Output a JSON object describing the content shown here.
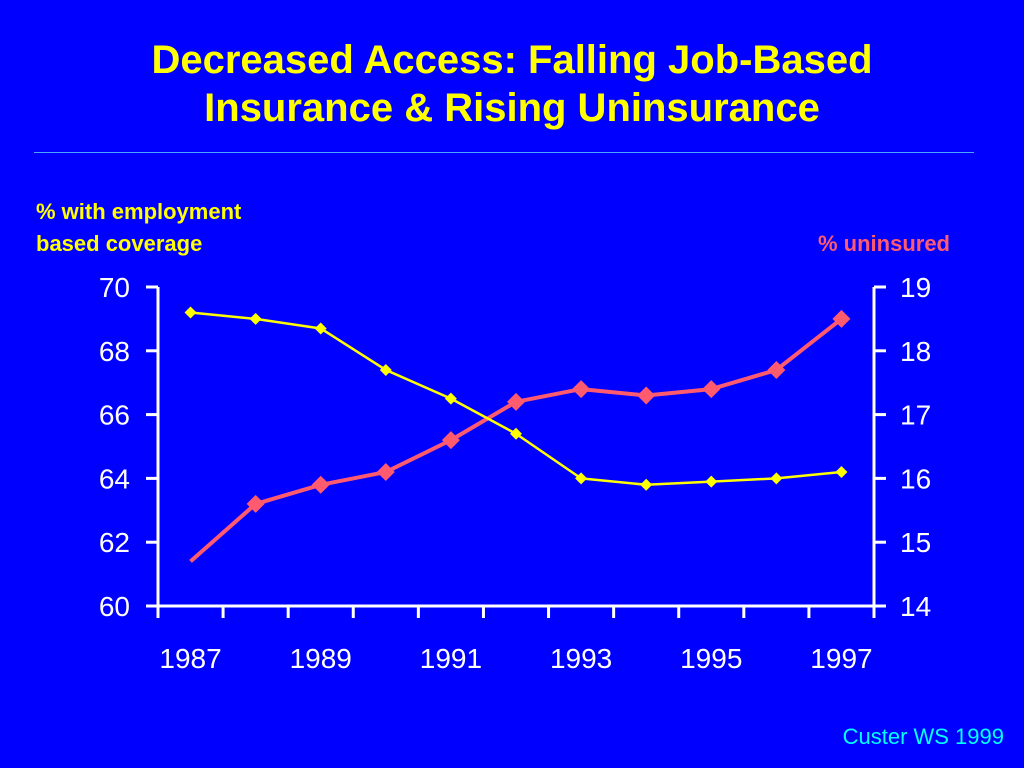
{
  "title_lines": [
    "Decreased Access: Falling Job-Based",
    "Insurance & Rising Uninsurance"
  ],
  "left_axis_label_lines": [
    "% with employment",
    "based coverage"
  ],
  "right_axis_label": "% uninsured",
  "source": "Custer WS 1999",
  "colors": {
    "background": "#0000ff",
    "title": "#ffff00",
    "employment_series": "#ffff00",
    "uninsured_series": "#ff5a6e",
    "axes": "#ffffff",
    "source": "#00ffff",
    "rule": "#4aa6ff"
  },
  "chart_data": {
    "type": "line",
    "title": "Decreased Access: Falling Job-Based Insurance & Rising Uninsurance",
    "x": [
      1987,
      1988,
      1989,
      1990,
      1991,
      1992,
      1993,
      1994,
      1995,
      1996,
      1997
    ],
    "x_tick_labels": [
      "1987",
      "1989",
      "1991",
      "1993",
      "1995",
      "1997"
    ],
    "y_left": {
      "label": "% with employment based coverage",
      "range": [
        60,
        70
      ],
      "tick_labels": [
        "70",
        "68",
        "66",
        "64",
        "62",
        "60"
      ]
    },
    "y_right": {
      "label": "% uninsured",
      "range": [
        14,
        19
      ],
      "tick_labels": [
        "19",
        "18",
        "17",
        "16",
        "15",
        "14"
      ]
    },
    "series": [
      {
        "name": "% with employment based coverage",
        "axis": "left",
        "marker": "small-diamond",
        "values": [
          69.2,
          69.0,
          68.7,
          67.4,
          66.5,
          65.4,
          64.0,
          63.8,
          63.9,
          64.0,
          64.2
        ]
      },
      {
        "name": "% uninsured",
        "axis": "right",
        "marker": "large-diamond",
        "values": [
          14.7,
          15.6,
          15.9,
          16.1,
          16.6,
          17.2,
          17.4,
          17.3,
          17.4,
          17.7,
          18.5
        ]
      }
    ],
    "marker_shown_from_index": {
      "% uninsured": 1
    },
    "grid": false,
    "legend": "axis-labels"
  }
}
